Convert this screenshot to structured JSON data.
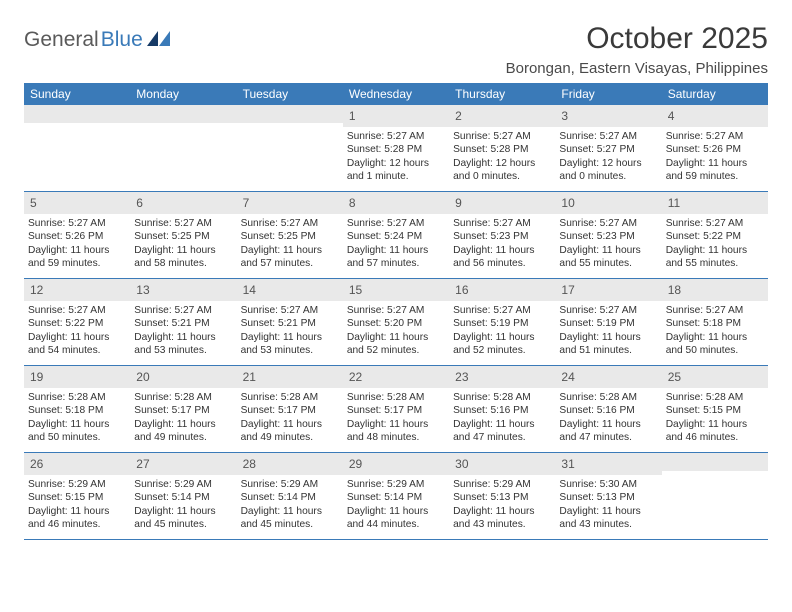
{
  "logo": {
    "part1": "General",
    "part2": "Blue"
  },
  "title": "October 2025",
  "location": "Borongan, Eastern Visayas, Philippines",
  "colors": {
    "header_bg": "#3a7ab8",
    "daynum_bg": "#e9e9e9",
    "text": "#333333",
    "page_bg": "#ffffff"
  },
  "day_labels": [
    "Sunday",
    "Monday",
    "Tuesday",
    "Wednesday",
    "Thursday",
    "Friday",
    "Saturday"
  ],
  "weeks": [
    [
      {
        "day": "",
        "lines": []
      },
      {
        "day": "",
        "lines": []
      },
      {
        "day": "",
        "lines": []
      },
      {
        "day": "1",
        "lines": [
          "Sunrise: 5:27 AM",
          "Sunset: 5:28 PM",
          "Daylight: 12 hours and 1 minute."
        ]
      },
      {
        "day": "2",
        "lines": [
          "Sunrise: 5:27 AM",
          "Sunset: 5:28 PM",
          "Daylight: 12 hours and 0 minutes."
        ]
      },
      {
        "day": "3",
        "lines": [
          "Sunrise: 5:27 AM",
          "Sunset: 5:27 PM",
          "Daylight: 12 hours and 0 minutes."
        ]
      },
      {
        "day": "4",
        "lines": [
          "Sunrise: 5:27 AM",
          "Sunset: 5:26 PM",
          "Daylight: 11 hours and 59 minutes."
        ]
      }
    ],
    [
      {
        "day": "5",
        "lines": [
          "Sunrise: 5:27 AM",
          "Sunset: 5:26 PM",
          "Daylight: 11 hours and 59 minutes."
        ]
      },
      {
        "day": "6",
        "lines": [
          "Sunrise: 5:27 AM",
          "Sunset: 5:25 PM",
          "Daylight: 11 hours and 58 minutes."
        ]
      },
      {
        "day": "7",
        "lines": [
          "Sunrise: 5:27 AM",
          "Sunset: 5:25 PM",
          "Daylight: 11 hours and 57 minutes."
        ]
      },
      {
        "day": "8",
        "lines": [
          "Sunrise: 5:27 AM",
          "Sunset: 5:24 PM",
          "Daylight: 11 hours and 57 minutes."
        ]
      },
      {
        "day": "9",
        "lines": [
          "Sunrise: 5:27 AM",
          "Sunset: 5:23 PM",
          "Daylight: 11 hours and 56 minutes."
        ]
      },
      {
        "day": "10",
        "lines": [
          "Sunrise: 5:27 AM",
          "Sunset: 5:23 PM",
          "Daylight: 11 hours and 55 minutes."
        ]
      },
      {
        "day": "11",
        "lines": [
          "Sunrise: 5:27 AM",
          "Sunset: 5:22 PM",
          "Daylight: 11 hours and 55 minutes."
        ]
      }
    ],
    [
      {
        "day": "12",
        "lines": [
          "Sunrise: 5:27 AM",
          "Sunset: 5:22 PM",
          "Daylight: 11 hours and 54 minutes."
        ]
      },
      {
        "day": "13",
        "lines": [
          "Sunrise: 5:27 AM",
          "Sunset: 5:21 PM",
          "Daylight: 11 hours and 53 minutes."
        ]
      },
      {
        "day": "14",
        "lines": [
          "Sunrise: 5:27 AM",
          "Sunset: 5:21 PM",
          "Daylight: 11 hours and 53 minutes."
        ]
      },
      {
        "day": "15",
        "lines": [
          "Sunrise: 5:27 AM",
          "Sunset: 5:20 PM",
          "Daylight: 11 hours and 52 minutes."
        ]
      },
      {
        "day": "16",
        "lines": [
          "Sunrise: 5:27 AM",
          "Sunset: 5:19 PM",
          "Daylight: 11 hours and 52 minutes."
        ]
      },
      {
        "day": "17",
        "lines": [
          "Sunrise: 5:27 AM",
          "Sunset: 5:19 PM",
          "Daylight: 11 hours and 51 minutes."
        ]
      },
      {
        "day": "18",
        "lines": [
          "Sunrise: 5:27 AM",
          "Sunset: 5:18 PM",
          "Daylight: 11 hours and 50 minutes."
        ]
      }
    ],
    [
      {
        "day": "19",
        "lines": [
          "Sunrise: 5:28 AM",
          "Sunset: 5:18 PM",
          "Daylight: 11 hours and 50 minutes."
        ]
      },
      {
        "day": "20",
        "lines": [
          "Sunrise: 5:28 AM",
          "Sunset: 5:17 PM",
          "Daylight: 11 hours and 49 minutes."
        ]
      },
      {
        "day": "21",
        "lines": [
          "Sunrise: 5:28 AM",
          "Sunset: 5:17 PM",
          "Daylight: 11 hours and 49 minutes."
        ]
      },
      {
        "day": "22",
        "lines": [
          "Sunrise: 5:28 AM",
          "Sunset: 5:17 PM",
          "Daylight: 11 hours and 48 minutes."
        ]
      },
      {
        "day": "23",
        "lines": [
          "Sunrise: 5:28 AM",
          "Sunset: 5:16 PM",
          "Daylight: 11 hours and 47 minutes."
        ]
      },
      {
        "day": "24",
        "lines": [
          "Sunrise: 5:28 AM",
          "Sunset: 5:16 PM",
          "Daylight: 11 hours and 47 minutes."
        ]
      },
      {
        "day": "25",
        "lines": [
          "Sunrise: 5:28 AM",
          "Sunset: 5:15 PM",
          "Daylight: 11 hours and 46 minutes."
        ]
      }
    ],
    [
      {
        "day": "26",
        "lines": [
          "Sunrise: 5:29 AM",
          "Sunset: 5:15 PM",
          "Daylight: 11 hours and 46 minutes."
        ]
      },
      {
        "day": "27",
        "lines": [
          "Sunrise: 5:29 AM",
          "Sunset: 5:14 PM",
          "Daylight: 11 hours and 45 minutes."
        ]
      },
      {
        "day": "28",
        "lines": [
          "Sunrise: 5:29 AM",
          "Sunset: 5:14 PM",
          "Daylight: 11 hours and 45 minutes."
        ]
      },
      {
        "day": "29",
        "lines": [
          "Sunrise: 5:29 AM",
          "Sunset: 5:14 PM",
          "Daylight: 11 hours and 44 minutes."
        ]
      },
      {
        "day": "30",
        "lines": [
          "Sunrise: 5:29 AM",
          "Sunset: 5:13 PM",
          "Daylight: 11 hours and 43 minutes."
        ]
      },
      {
        "day": "31",
        "lines": [
          "Sunrise: 5:30 AM",
          "Sunset: 5:13 PM",
          "Daylight: 11 hours and 43 minutes."
        ]
      },
      {
        "day": "",
        "lines": []
      }
    ]
  ]
}
